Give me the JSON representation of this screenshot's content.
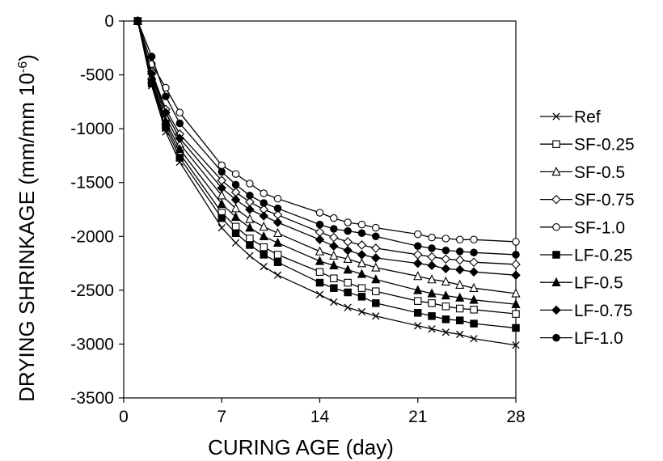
{
  "chart_data": {
    "type": "line",
    "title": "",
    "xlabel": "CURING AGE (day)",
    "ylabel": "DRYING SHRINKAGE (mm/mm 10",
    "ylabel_exponent": "-6",
    "ylabel_close": ")",
    "xlim": [
      0,
      28
    ],
    "ylim": [
      -3500,
      0
    ],
    "xticks": [
      0,
      7,
      14,
      21,
      28
    ],
    "yticks": [
      0,
      -500,
      -1000,
      -1500,
      -2000,
      -2500,
      -3000,
      -3500
    ],
    "grid": false,
    "legend_position": "right",
    "x": [
      1,
      2,
      3,
      4,
      7,
      8,
      9,
      10,
      11,
      14,
      15,
      16,
      17,
      18,
      21,
      22,
      23,
      24,
      25,
      28
    ],
    "series": [
      {
        "name": "Ref",
        "marker": "x",
        "values": [
          0,
          -600,
          -1030,
          -1310,
          -1920,
          -2060,
          -2180,
          -2280,
          -2360,
          -2540,
          -2610,
          -2660,
          -2700,
          -2740,
          -2830,
          -2860,
          -2890,
          -2910,
          -2950,
          -3010
        ]
      },
      {
        "name": "SF-0.25",
        "marker": "open-square",
        "values": [
          0,
          -560,
          -960,
          -1230,
          -1780,
          -1910,
          -2020,
          -2100,
          -2170,
          -2330,
          -2390,
          -2430,
          -2480,
          -2510,
          -2600,
          -2620,
          -2650,
          -2670,
          -2680,
          -2720
        ]
      },
      {
        "name": "SF-0.5",
        "marker": "open-triangle",
        "values": [
          0,
          -510,
          -890,
          -1140,
          -1620,
          -1740,
          -1840,
          -1910,
          -1970,
          -2140,
          -2180,
          -2210,
          -2250,
          -2290,
          -2370,
          -2400,
          -2420,
          -2450,
          -2480,
          -2530
        ]
      },
      {
        "name": "SF-0.75",
        "marker": "open-diamond",
        "values": [
          0,
          -470,
          -820,
          -1050,
          -1480,
          -1590,
          -1680,
          -1750,
          -1800,
          -1960,
          -2010,
          -2050,
          -2080,
          -2110,
          -2170,
          -2190,
          -2210,
          -2220,
          -2240,
          -2260
        ]
      },
      {
        "name": "SF-1.0",
        "marker": "open-circle",
        "values": [
          0,
          -400,
          -620,
          -850,
          -1340,
          -1420,
          -1510,
          -1600,
          -1650,
          -1780,
          -1830,
          -1870,
          -1890,
          -1920,
          -1980,
          -2010,
          -2020,
          -2030,
          -2030,
          -2050
        ]
      },
      {
        "name": "LF-0.25",
        "marker": "filled-square",
        "values": [
          0,
          -580,
          -990,
          -1270,
          -1830,
          -1970,
          -2080,
          -2170,
          -2240,
          -2430,
          -2480,
          -2520,
          -2560,
          -2620,
          -2710,
          -2740,
          -2770,
          -2780,
          -2810,
          -2850
        ]
      },
      {
        "name": "LF-0.5",
        "marker": "filled-triangle",
        "values": [
          0,
          -540,
          -930,
          -1190,
          -1700,
          -1820,
          -1920,
          -2000,
          -2060,
          -2230,
          -2270,
          -2310,
          -2350,
          -2400,
          -2500,
          -2530,
          -2550,
          -2570,
          -2590,
          -2630
        ]
      },
      {
        "name": "LF-0.75",
        "marker": "filled-diamond",
        "values": [
          0,
          -490,
          -850,
          -1090,
          -1550,
          -1660,
          -1750,
          -1810,
          -1870,
          -2030,
          -2090,
          -2130,
          -2170,
          -2200,
          -2250,
          -2270,
          -2300,
          -2310,
          -2330,
          -2360
        ]
      },
      {
        "name": "LF-1.0",
        "marker": "filled-circle",
        "values": [
          0,
          -330,
          -700,
          -950,
          -1400,
          -1520,
          -1620,
          -1690,
          -1740,
          -1890,
          -1930,
          -1950,
          -1970,
          -2000,
          -2090,
          -2110,
          -2130,
          -2140,
          -2150,
          -2170
        ]
      }
    ]
  }
}
